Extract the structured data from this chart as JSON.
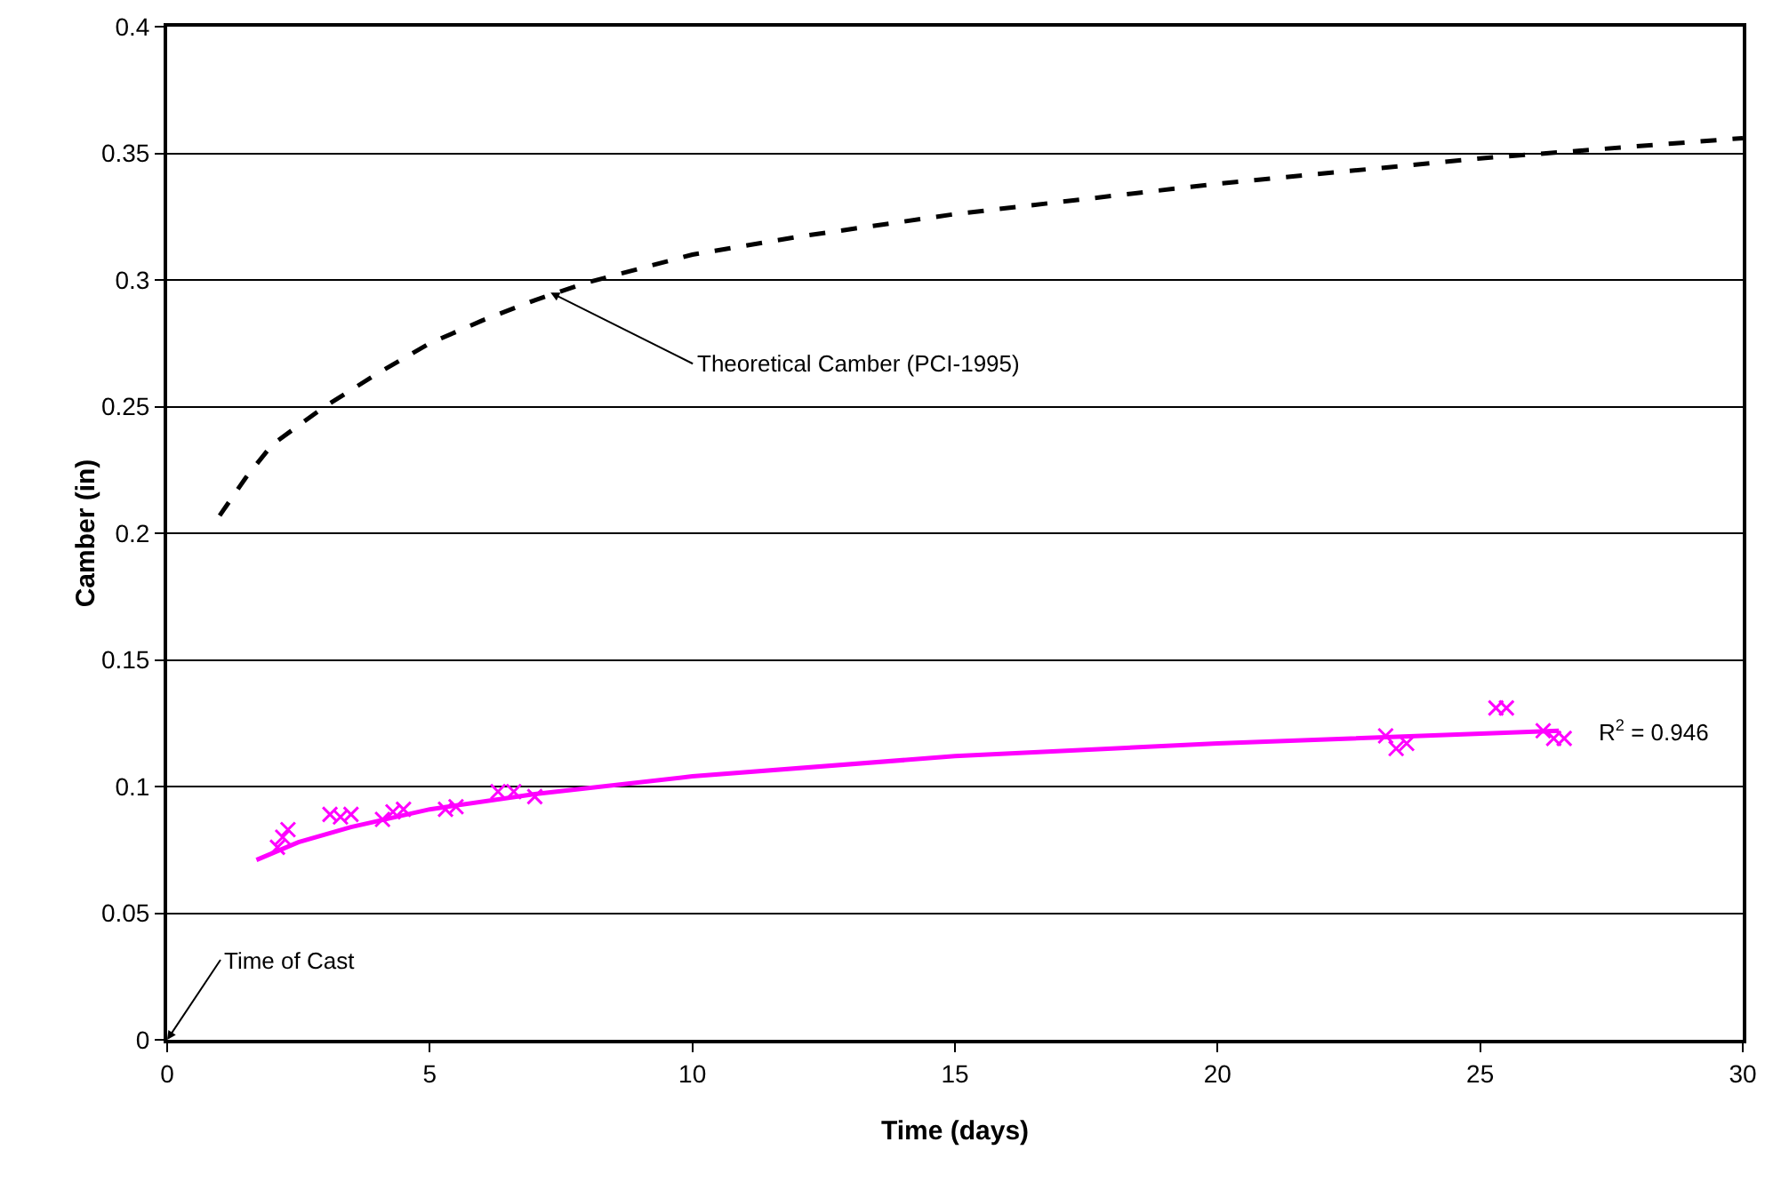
{
  "chart_data": {
    "type": "scatter",
    "xlabel": "Time (days)",
    "ylabel": "Camber (in)",
    "xlim": [
      0,
      30
    ],
    "xticks": [
      0,
      5,
      10,
      15,
      20,
      25,
      30
    ],
    "ylim": [
      0,
      0.4
    ],
    "yticks": [
      0,
      0.05,
      0.1,
      0.15,
      0.2,
      0.25,
      0.3,
      0.35,
      0.4
    ],
    "grid": "y",
    "series": [
      {
        "type": "line",
        "color": "#000000",
        "line_style": "dashed",
        "marker": "none",
        "x": [
          1,
          1.5,
          2,
          3,
          4,
          5,
          6,
          7,
          8,
          10,
          12,
          15,
          20,
          25,
          30
        ],
        "values": [
          0.207,
          0.222,
          0.235,
          0.25,
          0.263,
          0.275,
          0.284,
          0.292,
          0.299,
          0.31,
          0.317,
          0.326,
          0.338,
          0.348,
          0.356
        ]
      },
      {
        "color": "#ff00ff",
        "marker": "cross",
        "x": [
          2.1,
          2.2,
          2.3,
          3.1,
          3.3,
          3.5,
          4.1,
          4.3,
          4.5,
          5.3,
          5.5,
          6.3,
          6.6,
          7.0,
          23.2,
          23.4,
          23.6,
          25.3,
          25.5,
          26.2,
          26.4,
          26.6
        ],
        "values": [
          0.076,
          0.08,
          0.083,
          0.089,
          0.088,
          0.089,
          0.087,
          0.09,
          0.091,
          0.091,
          0.092,
          0.098,
          0.098,
          0.096,
          0.12,
          0.115,
          0.117,
          0.131,
          0.131,
          0.122,
          0.119,
          0.119
        ]
      },
      {
        "type": "line",
        "color": "#ff00ff",
        "line_style": "solid",
        "marker": "none",
        "x": [
          1.7,
          2.5,
          3.5,
          5,
          7,
          10,
          15,
          20,
          26.5
        ],
        "values": [
          0.071,
          0.078,
          0.084,
          0.091,
          0.097,
          0.104,
          0.112,
          0.117,
          0.122
        ]
      }
    ],
    "annotations": [
      {
        "text": "Theoretical Camber (PCI-1995)",
        "x": 7.3,
        "y": 0.295
      },
      {
        "text": "R$^{2}$ = 0.946",
        "x": 26.5,
        "y": 0.122
      },
      "Time of Cast"
    ]
  }
}
